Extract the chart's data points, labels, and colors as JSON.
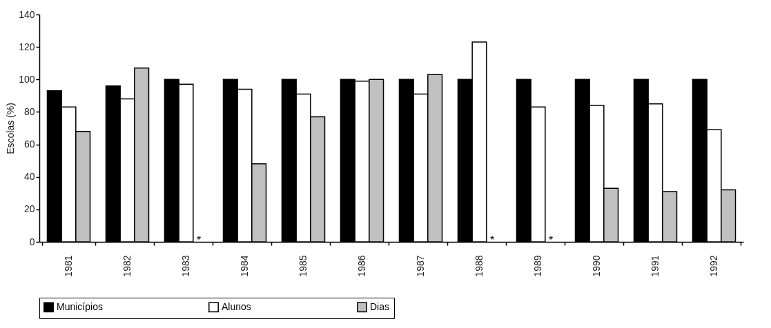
{
  "chart_data": {
    "type": "bar",
    "ylabel": "Escolas (%)",
    "categories": [
      "1981",
      "1982",
      "1983",
      "1984",
      "1985",
      "1986",
      "1987",
      "1988",
      "1989",
      "1990",
      "1991",
      "1992"
    ],
    "series": [
      {
        "name": "Municípios",
        "color": "#000000",
        "values": [
          93,
          96,
          100,
          100,
          100,
          100,
          100,
          100,
          100,
          100,
          100,
          100
        ]
      },
      {
        "name": "Alunos",
        "color": "#ffffff",
        "values": [
          83,
          88,
          97,
          94,
          91,
          99,
          91,
          123,
          83,
          84,
          85,
          69
        ]
      },
      {
        "name": "Dias",
        "color": "#c0c0c0",
        "values": [
          68,
          107,
          null,
          48,
          77,
          100,
          103,
          null,
          null,
          33,
          31,
          32
        ]
      }
    ],
    "ylim": [
      0,
      140
    ],
    "yticks": [
      0,
      20,
      40,
      60,
      80,
      100,
      120,
      140
    ],
    "grid": false,
    "legend": "bottom",
    "annotations": [
      {
        "text": "*",
        "x": "1983",
        "y": 0
      },
      {
        "text": "*",
        "x": "1988",
        "y": 0
      },
      {
        "text": "*",
        "x": "1989",
        "y": 0
      }
    ]
  }
}
